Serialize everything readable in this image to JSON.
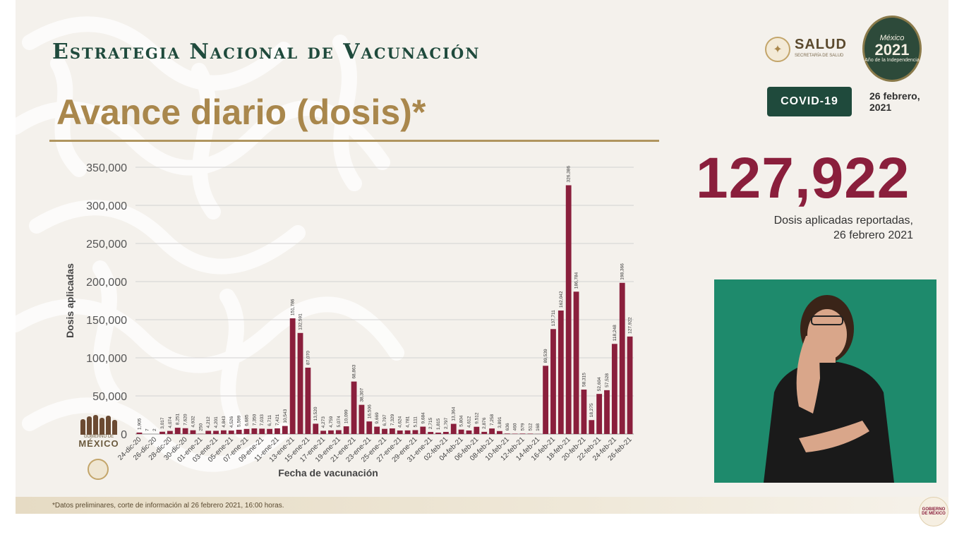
{
  "header": {
    "title": "Estrategia Nacional de Vacunación",
    "subtitle": "Avance diario (dosis)*",
    "salud_name": "SALUD",
    "salud_sub": "SECRETARÍA DE SALUD",
    "emblem_line1": "México",
    "emblem_line2": "2021",
    "emblem_line3": "Año de la Independencia",
    "covid_badge": "COVID-19",
    "date": "26 febrero, 2021"
  },
  "highlight": {
    "number": "127,922",
    "caption_line1": "Dosis aplicadas reportadas,",
    "caption_line2": "26 febrero 2021"
  },
  "footer": {
    "note": "*Datos preliminares, corte de información al 26 febrero 2021, 16:00 horas.",
    "gob_text": "GOBIERNO DE",
    "gob_text2": "MÉXICO",
    "corner_seal": "GOBIERNO DE MÉXICO"
  },
  "colors": {
    "bar": "#8a1f3c",
    "title": "#1f4a3c",
    "subtitle": "#a9874c",
    "interpreter_bg": "#1e8a6c"
  },
  "chart_data": {
    "type": "bar",
    "title": "",
    "xlabel": "Fecha de vacunación",
    "ylabel": "Dosis aplicadas",
    "ylim": [
      0,
      350000
    ],
    "yticks": [
      0,
      50000,
      100000,
      150000,
      200000,
      250000,
      300000,
      350000
    ],
    "ytick_labels": [
      "0",
      "50,000",
      "100,000",
      "150,000",
      "200,000",
      "250,000",
      "300,000",
      "350,000"
    ],
    "grid": true,
    "categories": [
      "24-dic-20",
      "25-dic-20",
      "26-dic-20",
      "27-dic-20",
      "28-dic-20",
      "29-dic-20",
      "30-dic-20",
      "31-dic-20",
      "01-ene-21",
      "02-ene-21",
      "03-ene-21",
      "04-ene-21",
      "05-ene-21",
      "06-ene-21",
      "07-ene-21",
      "08-ene-21",
      "09-ene-21",
      "10-ene-21",
      "11-ene-21",
      "12-ene-21",
      "13-ene-21",
      "14-ene-21",
      "15-ene-21",
      "16-ene-21",
      "17-ene-21",
      "18-ene-21",
      "19-ene-21",
      "20-ene-21",
      "21-ene-21",
      "22-ene-21",
      "23-ene-21",
      "24-ene-21",
      "25-ene-21",
      "26-ene-21",
      "27-ene-21",
      "28-ene-21",
      "29-ene-21",
      "30-ene-21",
      "31-ene-21",
      "01-feb-21",
      "02-feb-21",
      "03-feb-21",
      "04-feb-21",
      "05-feb-21",
      "06-feb-21",
      "07-feb-21",
      "08-feb-21",
      "09-feb-21",
      "10-feb-21",
      "11-feb-21",
      "12-feb-21",
      "13-feb-21",
      "14-feb-21",
      "15-feb-21",
      "16-feb-21",
      "17-feb-21",
      "18-feb-21",
      "19-feb-21",
      "20-feb-21",
      "21-feb-21",
      "22-feb-21",
      "23-feb-21",
      "24-feb-21",
      "25-feb-21",
      "26-feb-21"
    ],
    "xtick_labels_shown": [
      "24-dic-20",
      "26-dic-20",
      "28-dic-20",
      "30-dic-20",
      "01-ene-21",
      "03-ene-21",
      "05-ene-21",
      "07-ene-21",
      "09-ene-21",
      "11-ene-21",
      "13-ene-21",
      "15-ene-21",
      "17-ene-21",
      "19-ene-21",
      "21-ene-21",
      "23-ene-21",
      "25-ene-21",
      "27-ene-21",
      "29-ene-21",
      "31-ene-21",
      "02-feb-21",
      "04-feb-21",
      "06-feb-21",
      "08-feb-21",
      "10-feb-21",
      "12-feb-21",
      "14-feb-21",
      "16-feb-21",
      "18-feb-21",
      "20-feb-21",
      "22-feb-21",
      "24-feb-21",
      "26-feb-21"
    ],
    "values": [
      1905,
      7,
      2,
      3017,
      4074,
      8251,
      7620,
      4932,
      250,
      4212,
      4201,
      4843,
      4526,
      5599,
      6685,
      7350,
      7033,
      6711,
      7421,
      10543,
      151786,
      132591,
      87070,
      13520,
      4273,
      4759,
      5074,
      10099,
      68863,
      38307,
      16506,
      9669,
      6797,
      7329,
      4624,
      4781,
      5111,
      9684,
      2715,
      1815,
      2797,
      13364,
      5804,
      4612,
      9512,
      2876,
      7258,
      3891,
      636,
      460,
      579,
      512,
      168,
      89539,
      137711,
      162042,
      326386,
      186784,
      58315,
      18275,
      52604,
      57528,
      118248,
      198366,
      127922
    ],
    "data_labels": [
      "1,905",
      "7",
      "2",
      "3,017",
      "4,074",
      "8,251",
      "7,620",
      "4,932",
      "250",
      "4,212",
      "4,201",
      "4,843",
      "4,526",
      "5,599",
      "6,685",
      "7,350",
      "7,033",
      "6,711",
      "7,421",
      "10,543",
      "151,786",
      "132,591",
      "87,070",
      "13,520",
      "4,273",
      "4,759",
      "5,074",
      "10,099",
      "68,863",
      "38,307",
      "16,506",
      "9,669",
      "6,797",
      "7,329",
      "4,624",
      "4,781",
      "5,111",
      "9,684",
      "2,715",
      "1,815",
      "2,797",
      "13,364",
      "5,804",
      "4,612",
      "9,512",
      "2,876",
      "7,258",
      "3,891",
      "636",
      "460",
      "579",
      "512",
      "168",
      "89,539",
      "137,711",
      "162,042",
      "326,386",
      "186,784",
      "58,315",
      "18,275",
      "52,604",
      "57,528",
      "118,248",
      "198,366",
      "127,922"
    ],
    "legend": "none"
  }
}
